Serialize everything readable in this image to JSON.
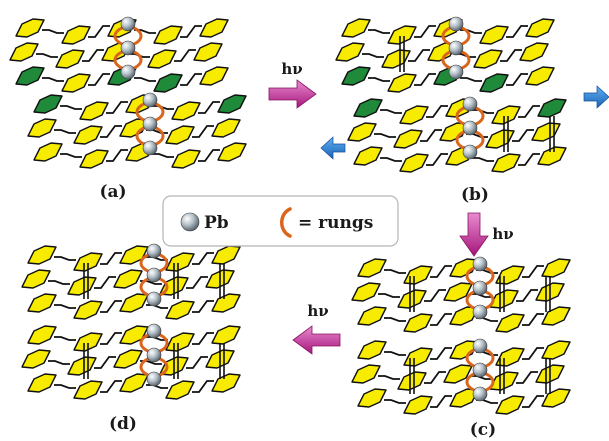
{
  "panels": [
    {
      "id": "a",
      "label": "(a)"
    },
    {
      "id": "b",
      "label": "(b)"
    },
    {
      "id": "c",
      "label": "(c)"
    },
    {
      "id": "d",
      "label": "(d)"
    }
  ],
  "arrows": [
    {
      "from": "a",
      "to": "b",
      "label": "hν",
      "direction": "right"
    },
    {
      "from": "b",
      "to": "c",
      "label": "hν",
      "direction": "down"
    },
    {
      "from": "c",
      "to": "d",
      "label": "hν",
      "direction": "left"
    }
  ],
  "legend": {
    "pb_label": "Pb",
    "rungs_label": "= rungs"
  },
  "colors": {
    "yellow_molecule": "#f7ec00",
    "green_molecule": "#1f8a3a",
    "rung": "#d9661c",
    "photon_arrow": "#c2278e",
    "shift_arrow": "#2a7fd4",
    "pb_sphere": "#8a9aa6"
  },
  "icons": {
    "pb": "sphere-icon",
    "rung": "rung-arc-icon",
    "shift": "shift-arrow-icon"
  }
}
